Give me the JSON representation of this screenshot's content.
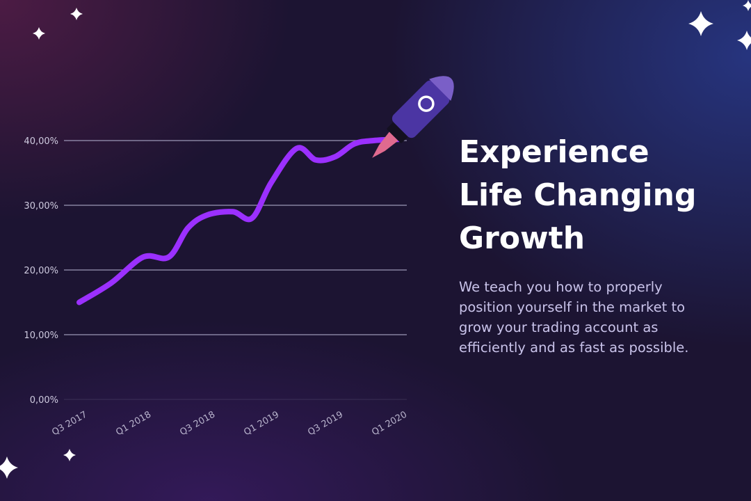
{
  "headline": {
    "lines": [
      "Experience",
      "Life Changing",
      "Growth"
    ]
  },
  "description": {
    "lines": [
      "We teach you how to properly",
      "position yourself in the market to",
      "grow your trading account as",
      "efficiently and as fast as possible."
    ]
  },
  "colors": {
    "line": "#9b30ff",
    "gridline": "#a9a5c4",
    "rocket_body": "#4b35a3",
    "rocket_nose": "#7a5fc7",
    "rocket_flame": "#e06a8f"
  },
  "icons": [
    "sparkle-icon",
    "rocket-icon"
  ],
  "chart_data": {
    "type": "line",
    "categories": [
      "Q3 2017",
      "Q1 2018",
      "Q3 2018",
      "Q1 2019",
      "Q3 2019",
      "Q1 2020"
    ],
    "y_ticks": [
      "0,00%",
      "10,00%",
      "20,00%",
      "30,00%",
      "40,00%"
    ],
    "ylim": [
      0,
      40
    ],
    "grid": true,
    "x": [
      0,
      0.5,
      1,
      1.4,
      1.7,
      2,
      2.4,
      2.7,
      3,
      3.4,
      3.7,
      4,
      4.3,
      4.6,
      5
    ],
    "values": [
      15,
      18,
      22,
      22,
      26.5,
      28.5,
      29,
      28,
      33.5,
      38.8,
      37,
      37.5,
      39.5,
      40,
      40.2
    ],
    "title": "",
    "xlabel": "",
    "ylabel": ""
  }
}
